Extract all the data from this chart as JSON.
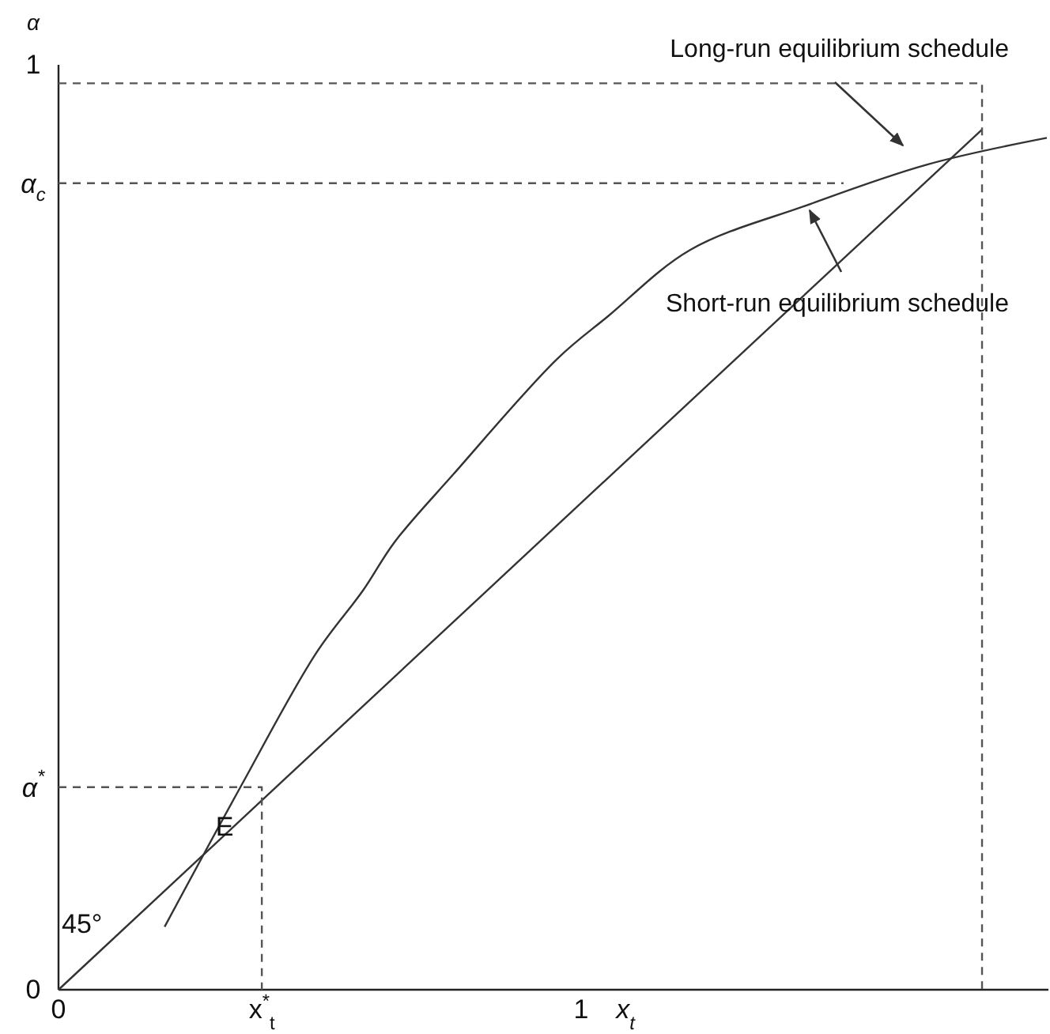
{
  "chart_data": {
    "type": "line",
    "ylabel": "α",
    "xlabel": "x$_{t}$",
    "xlim": [
      0,
      1.894
    ],
    "ylim": [
      0,
      1
    ],
    "xticks": [
      0,
      {
        "value": 0.389,
        "label": "x$^{*}$$_{t}$"
      },
      1
    ],
    "yticks": [
      0,
      {
        "value": 0.219,
        "label": "α$^{*}$"
      },
      {
        "value": 0.872,
        "label": "α$_{c}$"
      },
      1
    ],
    "grid": false,
    "series": [
      {
        "color": "#333333",
        "line_style": "solid",
        "x": [
          0,
          1.767
        ],
        "values": [
          0,
          0.93
        ]
      },
      {
        "color": "#333333",
        "line_style": "solid",
        "x": [
          0.203,
          0.348,
          0.493,
          0.583,
          0.643,
          0.755,
          0.954,
          1.051,
          1.209,
          1.431,
          1.661,
          1.891
        ],
        "values": [
          0.068,
          0.219,
          0.364,
          0.432,
          0.484,
          0.557,
          0.682,
          0.728,
          0.8,
          0.848,
          0.892,
          0.921
        ]
      },
      {
        "color": "#555555",
        "line_style": "dashed",
        "x": [
          0,
          0.389,
          0.389
        ],
        "values": [
          0.219,
          0.219,
          0
        ]
      },
      {
        "color": "#555555",
        "line_style": "dashed",
        "x": [
          0,
          1.502
        ],
        "values": [
          0.872,
          0.872
        ]
      },
      {
        "color": "#555555",
        "line_style": "dashed",
        "x": [
          0,
          1.767,
          1.767
        ],
        "values": [
          0.98,
          0.98,
          0
        ]
      }
    ],
    "annotations": [
      {
        "text": "E",
        "x": 0.336,
        "y": 0.18
      },
      "45°",
      "Long-run equilibrium schedule",
      "Short-run equilibrium schedule"
    ]
  }
}
